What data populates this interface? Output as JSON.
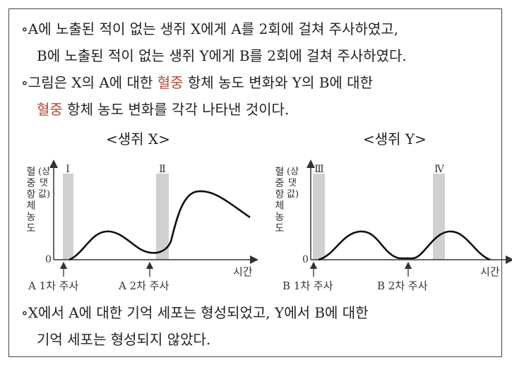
{
  "intro": {
    "line1": "∘A에 노출된 적이 없는 생쥐 X에게 A를 2회에 걸쳐 주사하였고,",
    "line2": "B에 노출된 적이 없는 생쥐 Y에게 B를 2회에 걸쳐 주사하였다.",
    "line3_a": "∘그림은 X의 A에 대한 ",
    "line3_hl": "혈중",
    "line3_b": " 항체 농도 변화와 Y의 B에 대한",
    "line4_hl": "혈중",
    "line4_b": " 항체 농도 변화를 각각 나타낸 것이다."
  },
  "accent_color": "#b04a3a",
  "charts": [
    {
      "title": "<생쥐 X>",
      "ylabel_main": "혈중 항체 농도",
      "ylabel_sub": "(상댓값)",
      "zero_label": "0",
      "xlabel": "시간",
      "zones": [
        "Ⅰ",
        "Ⅱ"
      ],
      "injections": [
        "A 1차 주사",
        "A 2차 주사"
      ]
    },
    {
      "title": "<생쥐 Y>",
      "ylabel_main": "혈중 항체 농도",
      "ylabel_sub": "(상댓값)",
      "zero_label": "0",
      "xlabel": "시간",
      "zones": [
        "Ⅲ",
        "Ⅳ"
      ],
      "injections": [
        "B 1차 주사",
        "B 2차 주사"
      ]
    }
  ],
  "conclusion": {
    "line1": "∘X에서 A에 대한 기억 세포는 형성되었고, Y에서 B에 대한",
    "line2": "기억 세포는 형성되지 않았다."
  }
}
